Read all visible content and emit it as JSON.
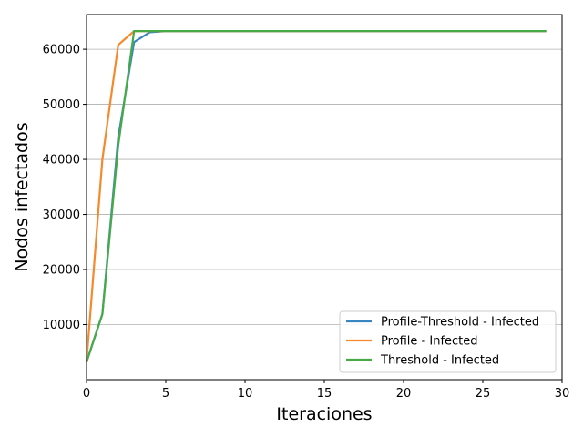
{
  "chart_data": {
    "type": "line",
    "title": "",
    "xlabel": "Iteraciones",
    "ylabel": "Nodos infectados",
    "xlim": [
      0,
      30
    ],
    "ylim": [
      0,
      66300
    ],
    "x_ticks": [
      0,
      5,
      10,
      15,
      20,
      25,
      30
    ],
    "y_ticks": [
      10000,
      20000,
      30000,
      40000,
      50000,
      60000
    ],
    "grid": "horizontal",
    "legend_position": "lower-right",
    "series": [
      {
        "name": "Profile-Threshold - Infected",
        "color": "#3a86c1",
        "x": [
          0,
          1,
          2,
          3,
          4,
          5,
          6,
          7,
          8,
          9,
          10,
          11,
          12,
          13,
          14,
          15,
          16,
          17,
          18,
          19,
          20,
          21,
          22,
          23,
          24,
          25,
          26,
          27,
          28,
          29
        ],
        "y": [
          3200,
          11900,
          44000,
          61300,
          63100,
          63300,
          63300,
          63300,
          63300,
          63300,
          63300,
          63300,
          63300,
          63300,
          63300,
          63300,
          63300,
          63300,
          63300,
          63300,
          63300,
          63300,
          63300,
          63300,
          63300,
          63300,
          63300,
          63300,
          63300,
          63300
        ]
      },
      {
        "name": "Profile - Infected",
        "color": "#f5892b",
        "x": [
          0,
          1,
          2,
          3,
          4,
          5,
          6,
          7,
          8,
          9,
          10,
          11,
          12,
          13,
          14,
          15,
          16,
          17,
          18,
          19,
          20,
          21,
          22,
          23,
          24,
          25,
          26,
          27,
          28,
          29
        ],
        "y": [
          3200,
          40000,
          60800,
          63300,
          63300,
          63300,
          63300,
          63300,
          63300,
          63300,
          63300,
          63300,
          63300,
          63300,
          63300,
          63300,
          63300,
          63300,
          63300,
          63300,
          63300,
          63300,
          63300,
          63300,
          63300,
          63300,
          63300,
          63300,
          63300,
          63300
        ]
      },
      {
        "name": "Threshold - Infected",
        "color": "#47aa47",
        "x": [
          0,
          1,
          2,
          3,
          4,
          5,
          6,
          7,
          8,
          9,
          10,
          11,
          12,
          13,
          14,
          15,
          16,
          17,
          18,
          19,
          20,
          21,
          22,
          23,
          24,
          25,
          26,
          27,
          28,
          29
        ],
        "y": [
          3200,
          11900,
          42500,
          63300,
          63300,
          63300,
          63300,
          63300,
          63300,
          63300,
          63300,
          63300,
          63300,
          63300,
          63300,
          63300,
          63300,
          63300,
          63300,
          63300,
          63300,
          63300,
          63300,
          63300,
          63300,
          63300,
          63300,
          63300,
          63300,
          63300
        ]
      }
    ]
  }
}
